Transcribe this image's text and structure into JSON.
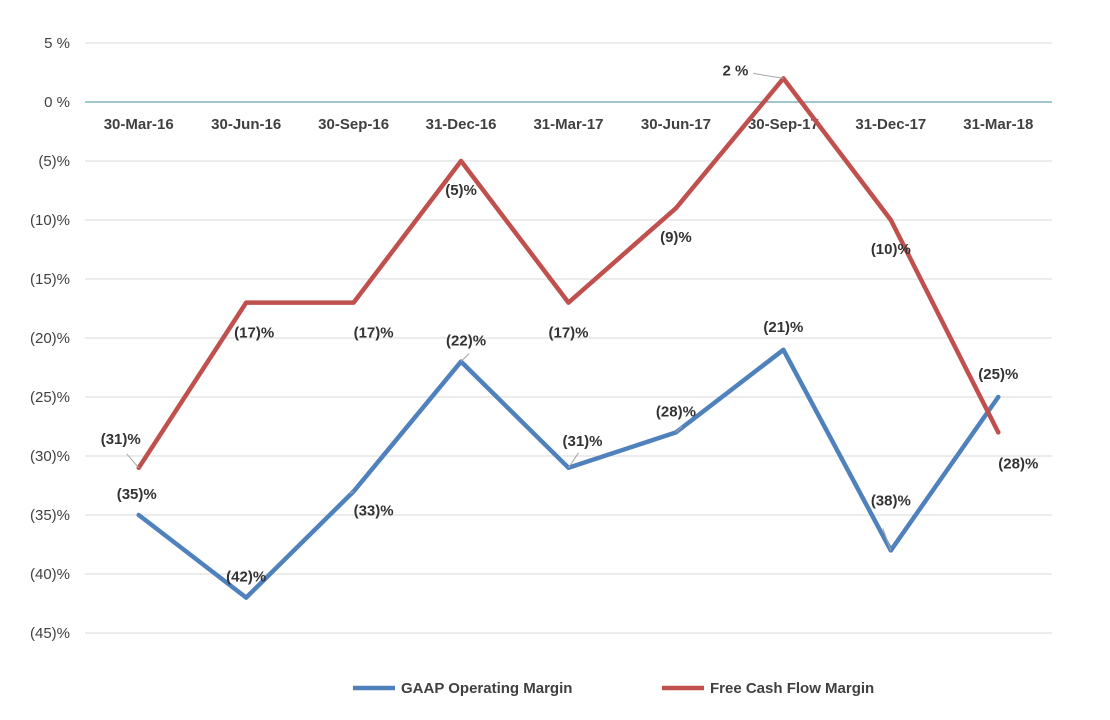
{
  "chart_data": {
    "type": "line",
    "categories": [
      "30-Mar-16",
      "30-Jun-16",
      "30-Sep-16",
      "31-Dec-16",
      "31-Mar-17",
      "30-Jun-17",
      "30-Sep-17",
      "31-Dec-17",
      "31-Mar-18"
    ],
    "series": [
      {
        "name": "GAAP Operating Margin",
        "color": "#4f81bd",
        "values": [
          -35,
          -42,
          -33,
          -22,
          -31,
          -28,
          -21,
          -38,
          -25
        ],
        "labels": [
          "(35)%",
          "(42)%",
          "(33)%",
          "(22)%",
          "(31)%",
          "(28)%",
          "(21)%",
          "(38)%",
          "(25)%"
        ]
      },
      {
        "name": "Free Cash Flow Margin",
        "color": "#c0504d",
        "values": [
          -31,
          -17,
          -17,
          -5,
          -17,
          -9,
          2,
          -10,
          -28
        ],
        "labels": [
          "(31)%",
          "(17)%",
          "(17)%",
          "(5)%",
          "(17)%",
          "(9)%",
          "2 %",
          "(10)%",
          "(28)%"
        ]
      }
    ],
    "ylim": [
      -45,
      5
    ],
    "yticks": [
      5,
      0,
      -5,
      -10,
      -15,
      -20,
      -25,
      -30,
      -35,
      -40,
      -45
    ],
    "ytick_labels": [
      "5 %",
      "0 %",
      "(5)%",
      "(10)%",
      "(15)%",
      "(20)%",
      "(25)%",
      "(30)%",
      "(35)%",
      "(40)%",
      "(45)%"
    ],
    "title": "",
    "xlabel": "",
    "ylabel": "",
    "grid": true,
    "legend": "bottom"
  }
}
